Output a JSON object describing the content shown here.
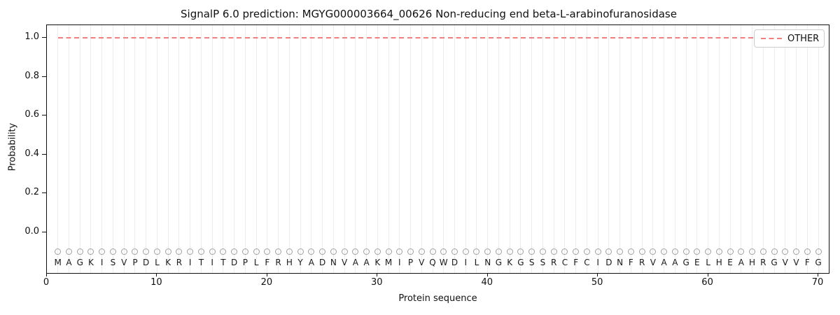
{
  "chart_data": {
    "type": "line",
    "title": "SignalP 6.0 prediction: MGYG000003664_00626 Non-reducing end beta-L-arabinofuranosidase",
    "xlabel": "Protein sequence",
    "ylabel": "Probability",
    "legend": {
      "position": "upper-right",
      "entries": [
        {
          "label": "OTHER",
          "line_style": "dashed",
          "color": "#f08080"
        }
      ]
    },
    "xlim": [
      0,
      71
    ],
    "ylim": [
      -0.22,
      1.07
    ],
    "xtick_values": [
      0,
      10,
      20,
      30,
      40,
      50,
      60,
      70
    ],
    "xticks": [
      "0",
      "10",
      "20",
      "30",
      "40",
      "50",
      "60",
      "70"
    ],
    "ytick_values": [
      0.0,
      0.2,
      0.4,
      0.6,
      0.8,
      1.0
    ],
    "yticks": [
      "0.0",
      "0.2",
      "0.4",
      "0.6",
      "0.8",
      "1.0"
    ],
    "grid": {
      "vertical_per_residue": true,
      "color": "#ededed"
    },
    "sequence": "MAGKISVPDLKRITITDPLFRHYADNVAAKMIPVQWDILNGKGSSRCFCIDNFRVAAGELHEAHRGVVFG",
    "sequence_length": 70,
    "series": [
      {
        "name": "OTHER",
        "line_style": "dashed",
        "color": "#f08080",
        "x_start": 1,
        "x_end": 70,
        "y_constant": 1.0
      }
    ],
    "marker_row": {
      "symbol": "circle-outline",
      "color": "#a0a0a0",
      "y": -0.1
    },
    "colors": {
      "spine": "#111111",
      "gridline": "#ededed",
      "other_line": "#f08080",
      "marker_stroke": "#a0a0a0",
      "text": "#111111",
      "legend_border": "#cccccc"
    }
  }
}
